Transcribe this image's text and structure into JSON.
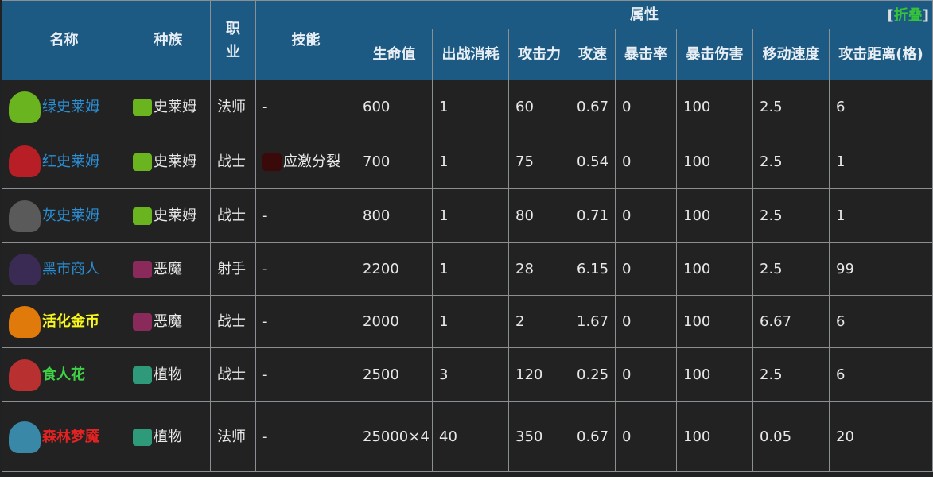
{
  "header": {
    "name": "名称",
    "race": "种族",
    "job": "职业",
    "skill": "技能",
    "attributes": "属性",
    "toggle_open": "[",
    "toggle_label": "折叠",
    "toggle_close": "]",
    "attr_cols": [
      "生命值",
      "出战消耗",
      "攻击力",
      "攻速",
      "暴击率",
      "暴击伤害",
      "移动速度",
      "攻击距离(格)"
    ]
  },
  "colors": {
    "header_bg": "#1c5a83",
    "body_bg": "#222222",
    "name_blue": "#2a8fd6",
    "name_yellow": "#f6f51c",
    "name_green": "#3fd046",
    "name_red": "#e52222"
  },
  "rows": [
    {
      "name": "绿史莱姆",
      "name_color": "blue",
      "icon": "green-slime-icon",
      "race": "史莱姆",
      "race_icon": "slime-icon",
      "job": "法师",
      "skill": "-",
      "skill_icon": "",
      "vals": [
        "600",
        "1",
        "60",
        "0.67",
        "0",
        "100",
        "2.5",
        "6"
      ]
    },
    {
      "name": "红史莱姆",
      "name_color": "blue",
      "icon": "red-slime-icon",
      "race": "史莱姆",
      "race_icon": "slime-icon",
      "job": "战士",
      "skill": "应激分裂",
      "skill_icon": "split-skill-icon",
      "vals": [
        "700",
        "1",
        "75",
        "0.54",
        "0",
        "100",
        "2.5",
        "1"
      ]
    },
    {
      "name": "灰史莱姆",
      "name_color": "blue",
      "icon": "gray-slime-icon",
      "race": "史莱姆",
      "race_icon": "slime-icon",
      "job": "战士",
      "skill": "-",
      "skill_icon": "",
      "vals": [
        "800",
        "1",
        "80",
        "0.71",
        "0",
        "100",
        "2.5",
        "1"
      ]
    },
    {
      "name": "黑市商人",
      "name_color": "blue",
      "icon": "black-market-merchant-icon",
      "race": "恶魔",
      "race_icon": "demon-icon",
      "job": "射手",
      "skill": "-",
      "skill_icon": "",
      "vals": [
        "2200",
        "1",
        "28",
        "6.15",
        "0",
        "100",
        "2.5",
        "99"
      ]
    },
    {
      "name": "活化金币",
      "name_color": "yellow",
      "icon": "living-coin-icon",
      "race": "恶魔",
      "race_icon": "demon-icon",
      "job": "战士",
      "skill": "-",
      "skill_icon": "",
      "vals": [
        "2000",
        "1",
        "2",
        "1.67",
        "0",
        "100",
        "6.67",
        "6"
      ]
    },
    {
      "name": "食人花",
      "name_color": "green",
      "icon": "piranha-flower-icon",
      "race": "植物",
      "race_icon": "plant-icon",
      "job": "战士",
      "skill": "-",
      "skill_icon": "",
      "vals": [
        "2500",
        "3",
        "120",
        "0.25",
        "0",
        "100",
        "2.5",
        "6"
      ]
    },
    {
      "name": "森林梦魇",
      "name_color": "red",
      "icon": "forest-nightmare-icon",
      "race": "植物",
      "race_icon": "plant-icon",
      "job": "法师",
      "skill": "-",
      "skill_icon": "",
      "vals": [
        "25000×4",
        "40",
        "350",
        "0.67",
        "0",
        "100",
        "0.05",
        "20"
      ]
    }
  ]
}
